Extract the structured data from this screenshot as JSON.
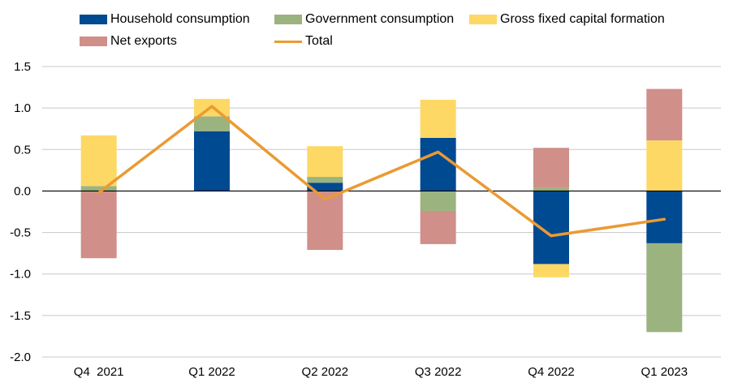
{
  "chart_data": {
    "type": "bar",
    "stacked": true,
    "title": "",
    "xlabel": "",
    "ylabel": "",
    "ylim": [
      -2.0,
      1.5
    ],
    "yticks": [
      "1.5",
      "1.0",
      "0.5",
      "0.0",
      "-0.5",
      "-1.0",
      "-1.5",
      "-2.0"
    ],
    "categories": [
      "Q4  2021",
      "Q1 2022",
      "Q2 2022",
      "Q3 2022",
      "Q4 2022",
      "Q1 2023"
    ],
    "grid": true,
    "legend_position": "top",
    "series": [
      {
        "name": "Household consumption",
        "color": "#004a91",
        "values": [
          0.0,
          0.72,
          0.1,
          0.64,
          -0.88,
          -0.63
        ]
      },
      {
        "name": "Government consumption",
        "color": "#9bb37f",
        "values": [
          0.06,
          0.18,
          0.07,
          -0.24,
          0.04,
          -1.07
        ]
      },
      {
        "name": "Gross fixed capital formation",
        "color": "#fdd865",
        "values": [
          0.61,
          0.21,
          0.37,
          0.46,
          -0.16,
          0.61
        ]
      },
      {
        "name": "Net exports",
        "color": "#d08f89",
        "values": [
          -0.81,
          0.0,
          -0.71,
          -0.4,
          0.48,
          0.62
        ]
      }
    ],
    "line": {
      "name": "Total",
      "color": "#ea9a32",
      "values": [
        -0.02,
        1.02,
        -0.1,
        0.47,
        -0.54,
        -0.34
      ]
    }
  }
}
